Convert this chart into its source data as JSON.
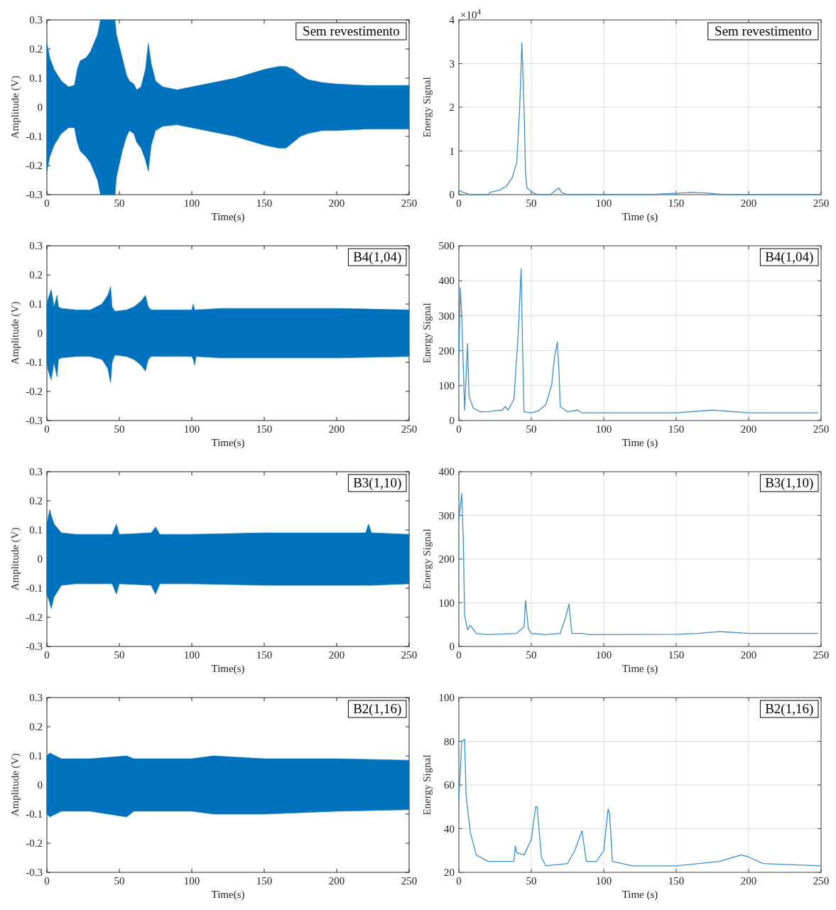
{
  "chart_data": [
    {
      "type": "area",
      "xlabel": "Time(s)",
      "ylabel": "Amplitude (V)",
      "annotations": [
        "Sem revestimento"
      ],
      "xlim": [
        0,
        250
      ],
      "xticks": [
        0,
        50,
        100,
        150,
        200,
        250
      ],
      "ylim": [
        -0.3,
        0.3
      ],
      "yticks": [
        -0.3,
        -0.2,
        -0.1,
        0,
        0.1,
        0.2,
        0.3
      ],
      "grid": false,
      "series": [
        {
          "color": "#0072bd",
          "x": [
            0,
            2,
            5,
            10,
            15,
            19,
            21,
            23,
            27,
            30,
            35,
            37,
            47,
            48,
            52,
            55,
            57,
            60,
            62,
            65,
            68,
            70,
            72,
            75,
            80,
            90,
            100,
            110,
            120,
            130,
            140,
            150,
            160,
            165,
            170,
            175,
            180,
            190,
            200,
            220,
            250
          ],
          "values": [
            0.22,
            0.17,
            0.13,
            0.09,
            0.07,
            0.075,
            0.13,
            0.16,
            0.17,
            0.19,
            0.25,
            0.3,
            0.3,
            0.25,
            0.17,
            0.11,
            0.09,
            0.08,
            0.06,
            0.07,
            0.13,
            0.22,
            0.15,
            0.09,
            0.07,
            0.06,
            0.07,
            0.08,
            0.09,
            0.1,
            0.115,
            0.13,
            0.14,
            0.14,
            0.13,
            0.11,
            0.095,
            0.085,
            0.08,
            0.075,
            0.075
          ]
        },
        {
          "color": "#0072bd",
          "x": [
            0,
            2,
            5,
            10,
            15,
            19,
            21,
            23,
            27,
            30,
            35,
            37,
            47,
            48,
            52,
            55,
            57,
            60,
            62,
            65,
            68,
            70,
            72,
            75,
            80,
            90,
            100,
            110,
            120,
            130,
            140,
            150,
            160,
            165,
            170,
            175,
            180,
            190,
            200,
            220,
            250
          ],
          "values": [
            -0.22,
            -0.17,
            -0.13,
            -0.09,
            -0.07,
            -0.07,
            -0.12,
            -0.15,
            -0.17,
            -0.19,
            -0.25,
            -0.3,
            -0.3,
            -0.24,
            -0.15,
            -0.1,
            -0.08,
            -0.09,
            -0.12,
            -0.14,
            -0.18,
            -0.22,
            -0.13,
            -0.08,
            -0.065,
            -0.06,
            -0.07,
            -0.08,
            -0.09,
            -0.1,
            -0.115,
            -0.13,
            -0.14,
            -0.14,
            -0.12,
            -0.1,
            -0.09,
            -0.08,
            -0.08,
            -0.075,
            -0.075
          ]
        }
      ]
    },
    {
      "type": "line",
      "xlabel": "Time (s)",
      "ylabel": "Energy Signal",
      "annotations": [
        "Sem revestimento",
        "×10$^{4}$"
      ],
      "xlim": [
        0,
        250
      ],
      "xticks": [
        0,
        50,
        100,
        150,
        200,
        250
      ],
      "ylim": [
        0,
        4
      ],
      "yticks": [
        0,
        1,
        2,
        3,
        4
      ],
      "grid": true,
      "series": [
        {
          "color": "#3a8fd1",
          "x": [
            0,
            3,
            8,
            20,
            22,
            28,
            33,
            37,
            40,
            42,
            43.5,
            45,
            46,
            47,
            50,
            52,
            55,
            63,
            67,
            69,
            71,
            75,
            100,
            130,
            150,
            160,
            170,
            185,
            250
          ],
          "values": [
            0.1,
            0.05,
            0,
            0,
            0.06,
            0.1,
            0.2,
            0.4,
            0.75,
            2,
            3.47,
            2,
            0.5,
            0.15,
            0.08,
            0.03,
            0,
            0,
            0.1,
            0.15,
            0.05,
            0,
            0,
            0,
            0.03,
            0.05,
            0.04,
            0,
            0
          ]
        }
      ]
    },
    {
      "type": "area",
      "xlabel": "Time(s)",
      "ylabel": "Amplitude (V)",
      "annotations": [
        "B4(1,04)"
      ],
      "xlim": [
        0,
        250
      ],
      "xticks": [
        0,
        50,
        100,
        150,
        200,
        250
      ],
      "ylim": [
        -0.3,
        0.3
      ],
      "yticks": [
        -0.3,
        -0.2,
        -0.1,
        0,
        0.1,
        0.2,
        0.3
      ],
      "grid": false,
      "series": [
        {
          "color": "#0072bd",
          "x": [
            0,
            1,
            3,
            5,
            7,
            8,
            10,
            20,
            30,
            38,
            42,
            44,
            45,
            47,
            55,
            60,
            65,
            68,
            70,
            72,
            80,
            100,
            101,
            102,
            103,
            120,
            150,
            200,
            250
          ],
          "values": [
            0.1,
            0.12,
            0.15,
            0.09,
            0.13,
            0.09,
            0.085,
            0.08,
            0.08,
            0.1,
            0.13,
            0.16,
            0.09,
            0.075,
            0.08,
            0.09,
            0.11,
            0.13,
            0.09,
            0.08,
            0.08,
            0.08,
            0.1,
            0.08,
            0.08,
            0.085,
            0.085,
            0.085,
            0.08
          ]
        },
        {
          "color": "#0072bd",
          "x": [
            0,
            1,
            3,
            5,
            7,
            8,
            10,
            20,
            30,
            38,
            42,
            44,
            45,
            47,
            55,
            60,
            65,
            68,
            70,
            72,
            80,
            100,
            101,
            102,
            103,
            120,
            150,
            200,
            250
          ],
          "values": [
            -0.1,
            -0.13,
            -0.16,
            -0.1,
            -0.15,
            -0.09,
            -0.085,
            -0.08,
            -0.08,
            -0.09,
            -0.12,
            -0.17,
            -0.1,
            -0.075,
            -0.08,
            -0.09,
            -0.11,
            -0.13,
            -0.09,
            -0.08,
            -0.08,
            -0.08,
            -0.09,
            -0.11,
            -0.08,
            -0.085,
            -0.085,
            -0.085,
            -0.08
          ]
        }
      ]
    },
    {
      "type": "line",
      "xlabel": "Time (s)",
      "ylabel": "Energy Signal",
      "annotations": [
        "B4(1,04)"
      ],
      "xlim": [
        0,
        250
      ],
      "xticks": [
        0,
        50,
        100,
        150,
        200,
        250
      ],
      "ylim": [
        0,
        500
      ],
      "yticks": [
        0,
        100,
        200,
        300,
        400,
        500
      ],
      "grid": true,
      "series": [
        {
          "color": "#3a8fd1",
          "x": [
            0,
            1,
            2,
            4,
            6,
            7,
            10,
            15,
            20,
            25,
            30,
            32,
            34,
            38,
            41,
            43,
            44,
            45,
            50,
            55,
            60,
            64,
            66,
            68,
            69,
            70,
            75,
            82,
            85,
            100,
            150,
            175,
            200,
            248
          ],
          "values": [
            180,
            380,
            300,
            30,
            220,
            70,
            35,
            25,
            25,
            28,
            30,
            40,
            30,
            60,
            250,
            435,
            200,
            25,
            22,
            28,
            45,
            100,
            180,
            225,
            150,
            40,
            25,
            30,
            22,
            22,
            22,
            30,
            22,
            22
          ]
        }
      ]
    },
    {
      "type": "area",
      "xlabel": "Time(s)",
      "ylabel": "Amplitude (V)",
      "annotations": [
        "B3(1,10)"
      ],
      "xlim": [
        0,
        250
      ],
      "xticks": [
        0,
        50,
        100,
        150,
        200,
        250
      ],
      "ylim": [
        -0.3,
        0.3
      ],
      "yticks": [
        -0.3,
        -0.2,
        -0.1,
        0,
        0.1,
        0.2,
        0.3
      ],
      "grid": false,
      "series": [
        {
          "color": "#0072bd",
          "x": [
            0,
            2,
            3,
            5,
            10,
            20,
            45,
            48,
            50,
            72,
            75,
            78,
            100,
            150,
            200,
            220,
            222,
            224,
            250
          ],
          "values": [
            0.12,
            0.17,
            0.15,
            0.12,
            0.09,
            0.085,
            0.085,
            0.12,
            0.085,
            0.09,
            0.11,
            0.085,
            0.085,
            0.09,
            0.09,
            0.09,
            0.12,
            0.09,
            0.085
          ]
        },
        {
          "color": "#0072bd",
          "x": [
            0,
            2,
            3,
            5,
            10,
            20,
            45,
            48,
            50,
            72,
            75,
            78,
            100,
            150,
            200,
            220,
            222,
            224,
            250
          ],
          "values": [
            -0.12,
            -0.15,
            -0.17,
            -0.13,
            -0.09,
            -0.085,
            -0.085,
            -0.12,
            -0.085,
            -0.09,
            -0.12,
            -0.085,
            -0.085,
            -0.09,
            -0.09,
            -0.09,
            -0.09,
            -0.09,
            -0.085
          ]
        }
      ]
    },
    {
      "type": "line",
      "xlabel": "Time (s)",
      "ylabel": "Energy Signal",
      "annotations": [
        "B3(1,10)"
      ],
      "xlim": [
        0,
        250
      ],
      "xticks": [
        0,
        50,
        100,
        150,
        200,
        250
      ],
      "ylim": [
        0,
        400
      ],
      "yticks": [
        0,
        100,
        200,
        300,
        400
      ],
      "grid": true,
      "series": [
        {
          "color": "#3a8fd1",
          "x": [
            0,
            2,
            3,
            4,
            6,
            8,
            12,
            20,
            40,
            45,
            46,
            48,
            50,
            60,
            70,
            74,
            76,
            78,
            85,
            90,
            100,
            150,
            165,
            180,
            200,
            248
          ],
          "values": [
            290,
            350,
            250,
            70,
            38,
            48,
            30,
            27,
            30,
            45,
            105,
            40,
            30,
            27,
            30,
            70,
            97,
            30,
            30,
            27,
            27,
            28,
            30,
            34,
            30,
            30
          ]
        }
      ]
    },
    {
      "type": "area",
      "xlabel": "Time(s)",
      "ylabel": "Amplitude (V)",
      "annotations": [
        "B2(1,16)"
      ],
      "xlim": [
        0,
        250
      ],
      "xticks": [
        0,
        50,
        100,
        150,
        200,
        250
      ],
      "ylim": [
        -0.3,
        0.3
      ],
      "yticks": [
        -0.3,
        -0.2,
        -0.1,
        0,
        0.1,
        0.2,
        0.3
      ],
      "grid": false,
      "series": [
        {
          "color": "#0072bd",
          "x": [
            0,
            2,
            10,
            30,
            55,
            60,
            100,
            115,
            150,
            200,
            250
          ],
          "values": [
            0.1,
            0.11,
            0.09,
            0.09,
            0.1,
            0.09,
            0.09,
            0.1,
            0.09,
            0.09,
            0.085
          ]
        },
        {
          "color": "#0072bd",
          "x": [
            0,
            2,
            10,
            30,
            55,
            60,
            100,
            115,
            150,
            200,
            250
          ],
          "values": [
            -0.1,
            -0.11,
            -0.09,
            -0.09,
            -0.11,
            -0.09,
            -0.09,
            -0.1,
            -0.1,
            -0.09,
            -0.085
          ]
        }
      ]
    },
    {
      "type": "line",
      "xlabel": "Time (s)",
      "ylabel": "Energy Signal",
      "annotations": [
        "B2(1,16)"
      ],
      "xlim": [
        0,
        250
      ],
      "xticks": [
        0,
        50,
        100,
        150,
        200,
        250
      ],
      "ylim": [
        20,
        100
      ],
      "yticks": [
        20,
        40,
        60,
        80,
        100
      ],
      "grid": true,
      "series": [
        {
          "color": "#3a8fd1",
          "x": [
            0,
            2,
            4,
            5,
            8,
            12,
            20,
            35,
            38,
            39,
            40,
            45,
            50,
            53,
            54,
            57,
            60,
            75,
            80,
            85,
            88,
            95,
            100,
            103,
            104,
            106,
            120,
            150,
            180,
            195,
            200,
            210,
            250
          ],
          "values": [
            53,
            80,
            81,
            55,
            38,
            28,
            25,
            25,
            25,
            32,
            29,
            28,
            35,
            50,
            50,
            27,
            23,
            24,
            30,
            39,
            25,
            25,
            30,
            49,
            47,
            25,
            23,
            23,
            25,
            28,
            27,
            24,
            23
          ]
        }
      ]
    }
  ]
}
